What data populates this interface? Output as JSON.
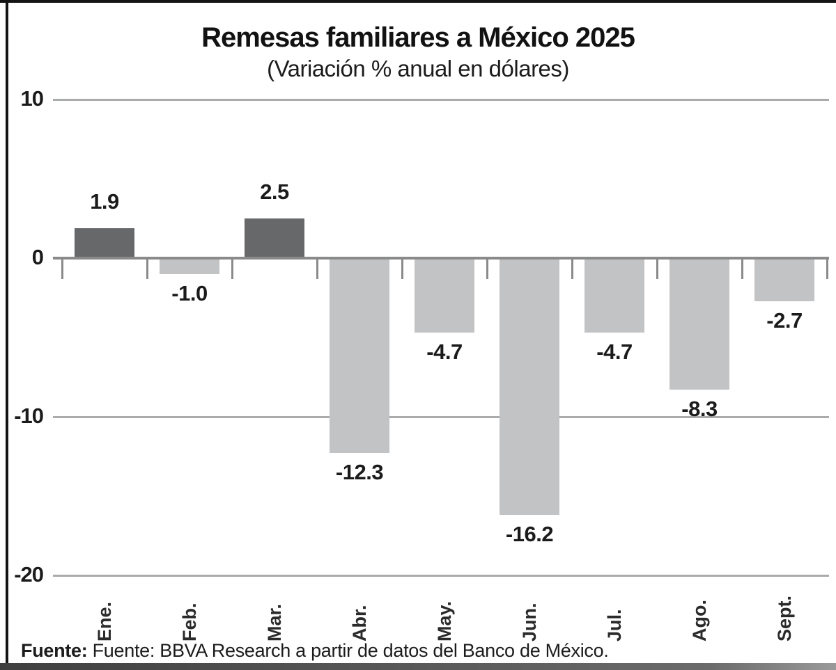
{
  "chart_data": {
    "type": "bar",
    "title": "Remesas familiares a México 2025",
    "subtitle": "(Variación % anual en dólares)",
    "categories": [
      "Ene.",
      "Feb.",
      "Mar.",
      "Abr.",
      "May.",
      "Jun.",
      "Jul.",
      "Ago.",
      "Sept."
    ],
    "values": [
      1.9,
      -1.0,
      2.5,
      -12.3,
      -4.7,
      -16.2,
      -4.7,
      -8.3,
      -2.7
    ],
    "value_labels": [
      "1.9",
      "-1.0",
      "2.5",
      "-12.3",
      "-4.7",
      "-16.2",
      "-4.7",
      "-8.3",
      "-2.7"
    ],
    "bar_palette": [
      "dark",
      "light",
      "dark",
      "light",
      "light",
      "light",
      "light",
      "light",
      "light"
    ],
    "yticks": [
      10,
      0,
      -10,
      -20
    ],
    "ylim": [
      -20,
      10
    ],
    "grid": "horizontal",
    "legend": "none",
    "xlabel": "",
    "ylabel": ""
  },
  "colors": {
    "bar_dark": "#67686a",
    "bar_light": "#c2c3c5",
    "gridline": "#aaabad",
    "axis": "#8a8a8a",
    "text": "#1b1b1b"
  },
  "source": {
    "label_bold": "Fuente:",
    "text": " Fuente: BBVA Research a partir de datos del Banco de México."
  }
}
